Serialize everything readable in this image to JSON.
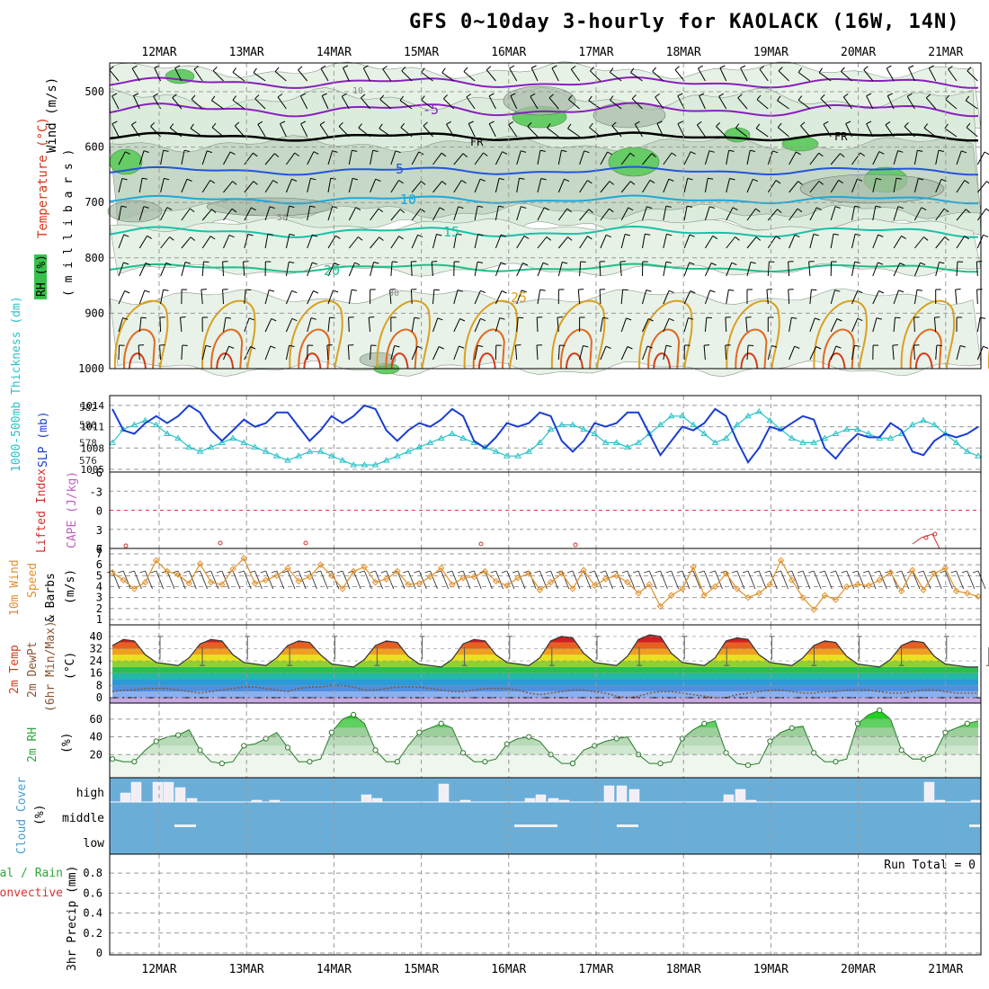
{
  "title": "GFS 0~10day 3-hourly for KAOLACK (16W, 14N)",
  "dates": [
    "12MAR",
    "13MAR",
    "14MAR",
    "15MAR",
    "16MAR",
    "17MAR",
    "18MAR",
    "19MAR",
    "20MAR",
    "21MAR"
  ],
  "colors": {
    "rh_green": "#36c24a",
    "temp_purple": "#8a1fc0",
    "temp_blue": "#2255dd",
    "temp_cyan": "#1ea8d8",
    "temp_teal": "#18c2a8",
    "temp_orange": "#d9a020",
    "temp_red": "#d43a1a",
    "slp": "#1a3fd0",
    "thick": "#2ac3c8",
    "wind": "#e0902a",
    "cloud_blue": "#6aaed8",
    "rh2m": "#2fa83a"
  },
  "panels": {
    "upper": {
      "ylabel_wind": "Wind (m/s)",
      "ylabel_temp": "Temperature (°C)",
      "ylabel_rh": "RH (%)",
      "ylabel_mb": "( m i l l i b a r s )",
      "y_ticks": [
        "500",
        "600",
        "700",
        "800",
        "900",
        "1000"
      ],
      "freezing_label": "FR",
      "contour_labels": [
        "-5",
        "5",
        "10",
        "15",
        "20",
        "25",
        "10",
        "30",
        "50"
      ]
    },
    "slp": {
      "ylabel_thick": "1000-500mb Thickness (dm)",
      "ylabel_slp": "SLP (mb)",
      "left_ticks": [
        "582",
        "580",
        "578",
        "576"
      ],
      "right_ticks": [
        "1014",
        "1011",
        "1008",
        "1005"
      ]
    },
    "li": {
      "ylabel_li": "Lifted Index",
      "ylabel_cape": "CAPE (J/kg)",
      "left_ticks": [
        "-6",
        "-3",
        "0",
        "3",
        "6"
      ],
      "right_ticks": [
        "7"
      ]
    },
    "wind": {
      "ylabel1": "10m Wind",
      "ylabel2": "Speed",
      "ylabel3": "& Barbs",
      "ylabel4": "(m/s)",
      "ticks": [
        "7",
        "6",
        "5",
        "4",
        "3",
        "2",
        "1"
      ]
    },
    "temp": {
      "ylabel1": "2m Temp",
      "ylabel2": "2m DewPt",
      "ylabel3": "(6hr Min/Max)",
      "ylabel4": "(°C)",
      "ticks": [
        "40",
        "32",
        "24",
        "16",
        "8",
        "0"
      ]
    },
    "rh2m": {
      "ylabel1": "2m RH",
      "ylabel2": "(%)",
      "ticks": [
        "60",
        "40",
        "20"
      ]
    },
    "cloud": {
      "ylabel1": "Cloud Cover",
      "ylabel2": "(%)",
      "levels": [
        "high",
        "middle",
        "low"
      ]
    },
    "precip": {
      "ylabel1": "3hr Precip (mm)",
      "ylabel_total": "Total / Rain",
      "ylabel_conv": "Convective",
      "run_total": "Run Total = 0",
      "ticks": [
        "0.8",
        "0.6",
        "0.4",
        "0.2",
        "0"
      ]
    }
  },
  "chart_data": [
    {
      "type": "line",
      "title": "1000-500mb Thickness and SLP",
      "x": [
        "11MAR 12Z",
        "11MAR 15Z",
        "11MAR 18Z",
        "11MAR 21Z",
        "12MAR 00Z",
        "12MAR 03Z",
        "12MAR 06Z",
        "12MAR 09Z",
        "12MAR 12Z",
        "12MAR 15Z",
        "12MAR 18Z",
        "12MAR 21Z",
        "13MAR 00Z",
        "13MAR 03Z",
        "13MAR 06Z",
        "13MAR 09Z",
        "13MAR 12Z",
        "13MAR 15Z",
        "13MAR 18Z",
        "13MAR 21Z",
        "14MAR 00Z",
        "14MAR 03Z",
        "14MAR 06Z",
        "14MAR 09Z",
        "14MAR 12Z",
        "14MAR 15Z",
        "14MAR 18Z",
        "14MAR 21Z",
        "15MAR 00Z",
        "15MAR 03Z",
        "15MAR 06Z",
        "15MAR 09Z",
        "15MAR 12Z",
        "15MAR 15Z",
        "15MAR 18Z",
        "15MAR 21Z",
        "16MAR 00Z",
        "16MAR 03Z",
        "16MAR 06Z",
        "16MAR 09Z",
        "16MAR 12Z",
        "16MAR 15Z",
        "16MAR 18Z",
        "16MAR 21Z",
        "17MAR 00Z",
        "17MAR 03Z",
        "17MAR 06Z",
        "17MAR 09Z",
        "17MAR 12Z",
        "17MAR 15Z",
        "17MAR 18Z",
        "17MAR 21Z",
        "18MAR 00Z",
        "18MAR 03Z",
        "18MAR 06Z",
        "18MAR 09Z",
        "18MAR 12Z",
        "18MAR 15Z",
        "18MAR 18Z",
        "18MAR 21Z",
        "19MAR 00Z",
        "19MAR 03Z",
        "19MAR 06Z",
        "19MAR 09Z",
        "19MAR 12Z",
        "19MAR 15Z",
        "19MAR 18Z",
        "19MAR 21Z",
        "20MAR 00Z",
        "20MAR 03Z",
        "20MAR 06Z",
        "20MAR 09Z",
        "20MAR 12Z",
        "20MAR 15Z",
        "20MAR 18Z",
        "20MAR 21Z",
        "21MAR 00Z",
        "21MAR 03Z",
        "21MAR 06Z",
        "21MAR 09Z"
      ],
      "series": [
        {
          "name": "SLP (mb)",
          "axis": "right",
          "values": [
            1013.5,
            1010.5,
            1010,
            1011.5,
            1012.5,
            1011.5,
            1012.5,
            1014,
            1013,
            1010.5,
            1009,
            1010.5,
            1012,
            1011,
            1011.5,
            1013,
            1013,
            1011,
            1009,
            1010.5,
            1012.5,
            1011.5,
            1012.5,
            1014,
            1013.5,
            1010.5,
            1009,
            1010.5,
            1011.5,
            1011,
            1012,
            1013.5,
            1012.5,
            1009,
            1008,
            1009.5,
            1011.5,
            1011,
            1011.5,
            1013,
            1012.5,
            1009,
            1007.5,
            1009,
            1011.5,
            1011,
            1011.5,
            1013,
            1013,
            1010,
            1007,
            1009,
            1011,
            1010.5,
            1011.5,
            1013.5,
            1012.5,
            1009,
            1006,
            1008,
            1011,
            1010.5,
            1011.5,
            1012.5,
            1012,
            1008,
            1006.5,
            1008.5,
            1010,
            1009.5,
            1009.5,
            1011.5,
            1010.5,
            1007.5,
            1007,
            1009,
            1010,
            1009.5,
            1010,
            1011
          ]
        },
        {
          "name": "1000-500mb Thickness (dm)",
          "axis": "left",
          "values": [
            578,
            579.5,
            580,
            580.5,
            580,
            579,
            578.5,
            577.5,
            577,
            577.5,
            578,
            578.5,
            578,
            577.5,
            577,
            576.5,
            576,
            576.5,
            577,
            577,
            576.5,
            576,
            575.5,
            575.5,
            575.5,
            576,
            576.5,
            577,
            577.5,
            578,
            578.5,
            579,
            578.5,
            578,
            577.5,
            577,
            576.5,
            576.5,
            577,
            578,
            579.5,
            580,
            580,
            579.5,
            579,
            578,
            578,
            577.5,
            578,
            579,
            580,
            581,
            581,
            580,
            579,
            578,
            578.5,
            580,
            581,
            581.5,
            580.5,
            579.5,
            578.5,
            578,
            578,
            578.5,
            579,
            579.5,
            579.5,
            579,
            578.5,
            578.5,
            579,
            580,
            580.5,
            580,
            579,
            578,
            577,
            576.5
          ]
        }
      ],
      "ylim_left": [
        575,
        583
      ],
      "ylim_right": [
        1005,
        1015
      ]
    },
    {
      "type": "line",
      "title": "10m Wind Speed",
      "ylabel": "(m/s)",
      "series": [
        {
          "name": "10m Wind Speed",
          "values": [
            5.3,
            4.6,
            3.8,
            4.4,
            6.4,
            5.4,
            5.1,
            4.3,
            6.1,
            4.4,
            4.2,
            5.6,
            6.6,
            4.3,
            4.6,
            5,
            5.7,
            4.5,
            4.9,
            6,
            5,
            3.8,
            5.4,
            5.8,
            4.4,
            4.7,
            5.4,
            4.2,
            4.3,
            4.9,
            5.7,
            4.2,
            4.8,
            4.9,
            5.4,
            4.5,
            4.1,
            4.8,
            5.2,
            3.7,
            4.4,
            5.2,
            3.8,
            5.5,
            4.1,
            4.7,
            5,
            4.4,
            3.4,
            4.2,
            2.2,
            3.2,
            3.8,
            5.8,
            3.2,
            4,
            5.2,
            3.8,
            3,
            3.4,
            4.2,
            6.4,
            4.6,
            3,
            1.9,
            3.2,
            2.8,
            4,
            4.2,
            4.1,
            4.6,
            5.3,
            3.6,
            5.5,
            3.7,
            5.2,
            5.7,
            3.6,
            3.4,
            3.1
          ]
        }
      ],
      "ylim": [
        1,
        7
      ]
    },
    {
      "type": "area",
      "title": "2m Temp / 2m DewPt",
      "ylabel": "(°C)",
      "series": [
        {
          "name": "2m Temp",
          "values": [
            34,
            38,
            37,
            28,
            23,
            22,
            21,
            26,
            35,
            38,
            37,
            28,
            23,
            22,
            21,
            26,
            34,
            37,
            36,
            28,
            22,
            21,
            20,
            25,
            34,
            37,
            36,
            27,
            22,
            21,
            20,
            25,
            35,
            38,
            37,
            28,
            23,
            22,
            21,
            26,
            37,
            40,
            39,
            29,
            23,
            22,
            21,
            27,
            38,
            41,
            40,
            29,
            23,
            22,
            21,
            26,
            37,
            39,
            38,
            28,
            23,
            22,
            21,
            26,
            34,
            37,
            36,
            27,
            22,
            21,
            20,
            25,
            34,
            37,
            36,
            27,
            22,
            21,
            20,
            20
          ]
        },
        {
          "name": "2m DewPt",
          "values": [
            4,
            5,
            5,
            6,
            6,
            6,
            5,
            4,
            3,
            4,
            5,
            6,
            7,
            7,
            6,
            5,
            4,
            6,
            7,
            7,
            8,
            8,
            7,
            5,
            5,
            6,
            7,
            7,
            7,
            6,
            5,
            4,
            4,
            5,
            6,
            6,
            6,
            5,
            3,
            2,
            3,
            4,
            5,
            5,
            4,
            3,
            1,
            0,
            1,
            3,
            4,
            4,
            3,
            2,
            1,
            0,
            0,
            2,
            3,
            4,
            5,
            5,
            4,
            3,
            3,
            4,
            4,
            5,
            5,
            5,
            4,
            3,
            3,
            4,
            5,
            5,
            4,
            3,
            3,
            3
          ]
        }
      ],
      "ylim": [
        0,
        44
      ]
    },
    {
      "type": "area",
      "title": "2m RH",
      "ylabel": "(%)",
      "series": [
        {
          "name": "2m RH",
          "values": [
            15,
            12,
            12,
            25,
            35,
            40,
            42,
            48,
            25,
            12,
            10,
            12,
            30,
            32,
            38,
            45,
            28,
            12,
            12,
            15,
            45,
            60,
            65,
            55,
            25,
            12,
            12,
            30,
            45,
            50,
            55,
            50,
            22,
            12,
            12,
            15,
            32,
            38,
            40,
            35,
            20,
            10,
            10,
            25,
            30,
            35,
            38,
            40,
            20,
            10,
            10,
            12,
            38,
            48,
            55,
            58,
            22,
            10,
            8,
            10,
            35,
            45,
            50,
            52,
            22,
            12,
            12,
            15,
            55,
            65,
            70,
            60,
            25,
            15,
            15,
            20,
            45,
            50,
            55,
            58
          ]
        }
      ],
      "ylim": [
        0,
        72
      ]
    },
    {
      "type": "bar",
      "title": "Cloud Cover",
      "categories": [
        "high",
        "middle",
        "low"
      ],
      "ylabel": "(%)"
    },
    {
      "type": "bar",
      "title": "3hr Precip",
      "ylabel": "3hr Precip (mm)",
      "values": [],
      "ylim": [
        0,
        1
      ],
      "annotation": "Run Total = 0"
    }
  ]
}
